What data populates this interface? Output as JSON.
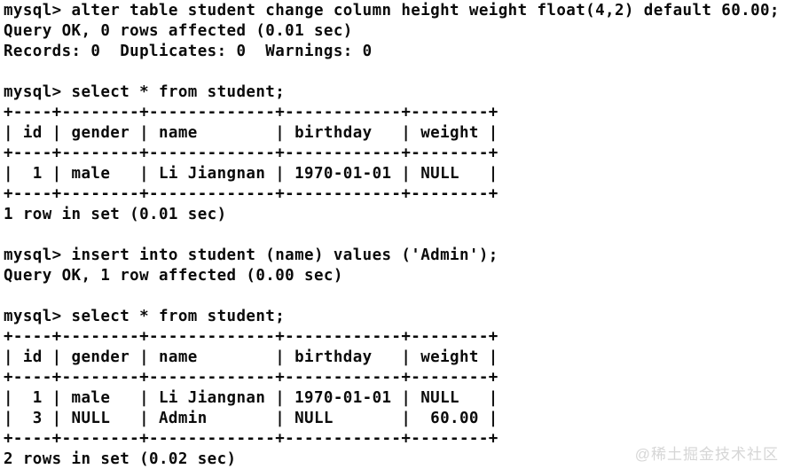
{
  "terminal": {
    "lines": [
      "mysql> alter table student change column height weight float(4,2) default 60.00;",
      "Query OK, 0 rows affected (0.01 sec)",
      "Records: 0  Duplicates: 0  Warnings: 0",
      "",
      "mysql> select * from student;",
      "+----+--------+-------------+------------+--------+",
      "| id | gender | name        | birthday   | weight |",
      "+----+--------+-------------+------------+--------+",
      "|  1 | male   | Li Jiangnan | 1970-01-01 | NULL   |",
      "+----+--------+-------------+------------+--------+",
      "1 row in set (0.01 sec)",
      "",
      "mysql> insert into student (name) values ('Admin');",
      "Query OK, 1 row affected (0.00 sec)",
      "",
      "mysql> select * from student;",
      "+----+--------+-------------+------------+--------+",
      "| id | gender | name        | birthday   | weight |",
      "+----+--------+-------------+------------+--------+",
      "|  1 | male   | Li Jiangnan | 1970-01-01 | NULL   |",
      "|  3 | NULL   | Admin       | NULL       |  60.00 |",
      "+----+--------+-------------+------------+--------+",
      "2 rows in set (0.02 sec)"
    ],
    "result_tables": [
      {
        "columns": [
          "id",
          "gender",
          "name",
          "birthday",
          "weight"
        ],
        "rows": [
          [
            "1",
            "male",
            "Li Jiangnan",
            "1970-01-01",
            "NULL"
          ]
        ],
        "summary": "1 row in set (0.01 sec)"
      },
      {
        "columns": [
          "id",
          "gender",
          "name",
          "birthday",
          "weight"
        ],
        "rows": [
          [
            "1",
            "male",
            "Li Jiangnan",
            "1970-01-01",
            "NULL"
          ],
          [
            "3",
            "NULL",
            "Admin",
            "NULL",
            "60.00"
          ]
        ],
        "summary": "2 rows in set (0.02 sec)"
      }
    ],
    "colors": {
      "text": "#0a0a0a",
      "background": "#ffffff",
      "watermark": "#d6d6d6"
    }
  },
  "watermark": {
    "text": "@稀土掘金技术社区"
  }
}
